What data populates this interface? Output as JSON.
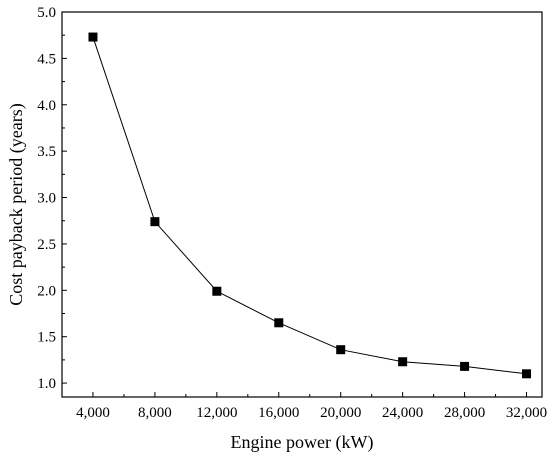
{
  "chart_data": {
    "type": "line",
    "title": "",
    "xlabel": "Engine power (kW)",
    "ylabel": "Cost payback period (years)",
    "x": [
      4000,
      8000,
      12000,
      16000,
      20000,
      24000,
      28000,
      32000
    ],
    "x_tick_values": [
      4000,
      8000,
      12000,
      16000,
      20000,
      24000,
      28000,
      32000
    ],
    "x_tick_labels": [
      "4,000",
      "8,000",
      "12,000",
      "16,000",
      "20,000",
      "24,000",
      "28,000",
      "32,000"
    ],
    "y_tick_values": [
      1.0,
      1.5,
      2.0,
      2.5,
      3.0,
      3.5,
      4.0,
      4.5,
      5.0
    ],
    "y_tick_labels": [
      "1.0",
      "1.5",
      "2.0",
      "2.5",
      "3.0",
      "3.5",
      "4.0",
      "4.5",
      "5.0"
    ],
    "xlim": [
      2000,
      33000
    ],
    "ylim": [
      0.85,
      5.0
    ],
    "series": [
      {
        "values": [
          4.73,
          2.74,
          1.99,
          1.65,
          1.36,
          1.23,
          1.18,
          1.1
        ],
        "marker": "square",
        "color": "#000000"
      }
    ],
    "grid": false,
    "legend": "none"
  }
}
